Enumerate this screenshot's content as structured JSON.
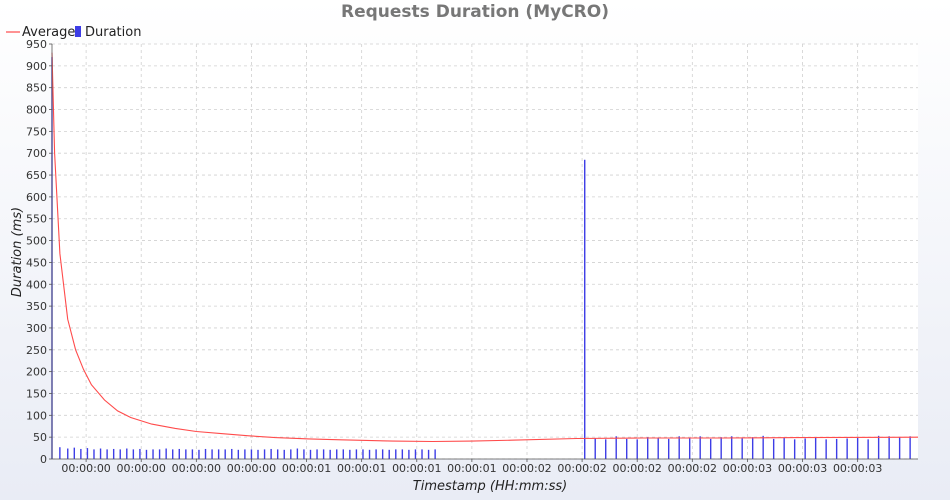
{
  "chart_data": {
    "type": "bar",
    "title": "Requests Duration (MyCRO)",
    "xlabel": "Timestamp (HH:mm:ss)",
    "ylabel": "Duration (ms)",
    "ylim": [
      0,
      950
    ],
    "yticks": [
      0,
      50,
      100,
      150,
      200,
      250,
      300,
      350,
      400,
      450,
      500,
      550,
      600,
      650,
      700,
      750,
      800,
      850,
      900,
      950
    ],
    "xlim": [
      0,
      3.3
    ],
    "x_ticks": [
      {
        "x": 0.13,
        "label": "00:00:00"
      },
      {
        "x": 0.34,
        "label": "00:00:00"
      },
      {
        "x": 0.55,
        "label": "00:00:00"
      },
      {
        "x": 0.76,
        "label": "00:00:00"
      },
      {
        "x": 0.97,
        "label": "00:00:01"
      },
      {
        "x": 1.18,
        "label": "00:00:01"
      },
      {
        "x": 1.39,
        "label": "00:00:01"
      },
      {
        "x": 1.6,
        "label": "00:00:01"
      },
      {
        "x": 1.81,
        "label": "00:00:02"
      },
      {
        "x": 2.02,
        "label": "00:00:02"
      },
      {
        "x": 2.23,
        "label": "00:00:02"
      },
      {
        "x": 2.44,
        "label": "00:00:02"
      },
      {
        "x": 2.65,
        "label": "00:00:03"
      },
      {
        "x": 2.86,
        "label": "00:00:03"
      },
      {
        "x": 3.07,
        "label": "00:00:03"
      }
    ],
    "grid": true,
    "legend": "top-left",
    "series": [
      {
        "name": "Average",
        "kind": "line",
        "color": "#ff4b4b",
        "x": [
          0.0,
          0.01,
          0.03,
          0.06,
          0.09,
          0.12,
          0.15,
          0.2,
          0.25,
          0.3,
          0.38,
          0.47,
          0.55,
          0.65,
          0.75,
          0.85,
          0.98,
          1.1,
          1.3,
          1.45,
          1.6,
          1.75,
          2.0,
          2.25,
          2.55,
          2.85,
          3.3
        ],
        "y": [
          930,
          700,
          470,
          320,
          250,
          205,
          170,
          135,
          110,
          95,
          80,
          70,
          63,
          58,
          53,
          49,
          46,
          44,
          41,
          40,
          41,
          43,
          47,
          48,
          48,
          49,
          50
        ]
      },
      {
        "name": "Duration",
        "kind": "bar",
        "color": "#3d3de6",
        "points": [
          [
            0.0,
            920
          ],
          [
            0.03,
            27
          ],
          [
            0.06,
            24
          ],
          [
            0.085,
            26
          ],
          [
            0.11,
            23
          ],
          [
            0.135,
            25
          ],
          [
            0.16,
            22
          ],
          [
            0.185,
            24
          ],
          [
            0.21,
            22
          ],
          [
            0.235,
            23
          ],
          [
            0.26,
            22
          ],
          [
            0.285,
            24
          ],
          [
            0.31,
            22
          ],
          [
            0.335,
            23
          ],
          [
            0.36,
            21
          ],
          [
            0.385,
            22
          ],
          [
            0.41,
            22
          ],
          [
            0.435,
            24
          ],
          [
            0.46,
            22
          ],
          [
            0.485,
            23
          ],
          [
            0.51,
            22
          ],
          [
            0.535,
            22
          ],
          [
            0.56,
            21
          ],
          [
            0.585,
            23
          ],
          [
            0.61,
            22
          ],
          [
            0.635,
            22
          ],
          [
            0.66,
            22
          ],
          [
            0.685,
            23
          ],
          [
            0.71,
            21
          ],
          [
            0.735,
            22
          ],
          [
            0.76,
            22
          ],
          [
            0.785,
            21
          ],
          [
            0.81,
            22
          ],
          [
            0.835,
            23
          ],
          [
            0.86,
            22
          ],
          [
            0.885,
            21
          ],
          [
            0.91,
            22
          ],
          [
            0.935,
            24
          ],
          [
            0.96,
            22
          ],
          [
            0.985,
            21
          ],
          [
            1.01,
            22
          ],
          [
            1.035,
            22
          ],
          [
            1.06,
            21
          ],
          [
            1.085,
            22
          ],
          [
            1.11,
            22
          ],
          [
            1.135,
            21
          ],
          [
            1.16,
            22
          ],
          [
            1.185,
            22
          ],
          [
            1.21,
            21
          ],
          [
            1.235,
            22
          ],
          [
            1.26,
            22
          ],
          [
            1.285,
            21
          ],
          [
            1.31,
            22
          ],
          [
            1.335,
            22
          ],
          [
            1.36,
            21
          ],
          [
            1.385,
            22
          ],
          [
            1.41,
            22
          ],
          [
            1.435,
            21
          ],
          [
            1.46,
            22
          ],
          [
            2.03,
            685
          ],
          [
            2.07,
            48
          ],
          [
            2.11,
            45
          ],
          [
            2.15,
            52
          ],
          [
            2.19,
            46
          ],
          [
            2.23,
            45
          ],
          [
            2.27,
            50
          ],
          [
            2.31,
            47
          ],
          [
            2.35,
            46
          ],
          [
            2.39,
            52
          ],
          [
            2.43,
            48
          ],
          [
            2.47,
            52
          ],
          [
            2.51,
            46
          ],
          [
            2.55,
            50
          ],
          [
            2.59,
            52
          ],
          [
            2.63,
            47
          ],
          [
            2.67,
            50
          ],
          [
            2.71,
            53
          ],
          [
            2.75,
            46
          ],
          [
            2.79,
            48
          ],
          [
            2.83,
            45
          ],
          [
            2.87,
            47
          ],
          [
            2.91,
            48
          ],
          [
            2.95,
            45
          ],
          [
            2.99,
            46
          ],
          [
            3.03,
            47
          ],
          [
            3.07,
            48
          ],
          [
            3.11,
            45
          ],
          [
            3.15,
            53
          ],
          [
            3.19,
            52
          ],
          [
            3.23,
            50
          ],
          [
            3.27,
            52
          ]
        ]
      }
    ]
  }
}
